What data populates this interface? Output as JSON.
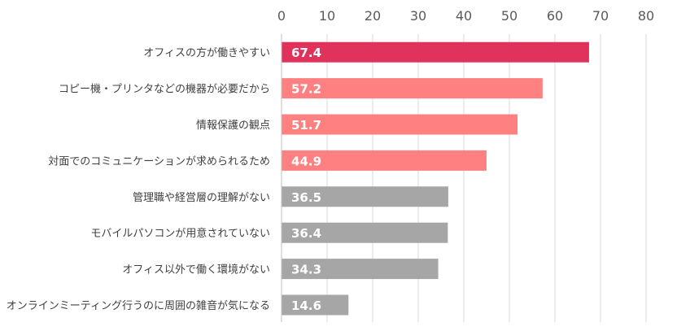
{
  "chart_data": {
    "type": "bar",
    "orientation": "horizontal",
    "categories": [
      "オフィスの方が働きやすい",
      "コピー機・プリンタなどの機器が必要だから",
      "情報保護の観点",
      "対面でのコミュニケーションが求められるため",
      "管理職や経営層の理解がない",
      "モバイルパソコンが用意されていない",
      "オフィス以外で働く環境がない",
      "オンラインミーティング行うのに周囲の雑音が気になる"
    ],
    "values": [
      67.4,
      57.2,
      51.7,
      44.9,
      36.5,
      36.4,
      34.3,
      14.6
    ],
    "value_labels": [
      "67.4",
      "57.2",
      "51.7",
      "44.9",
      "36.5",
      "36.4",
      "34.3",
      "14.6"
    ],
    "colors": [
      "#e0325a",
      "#ff8080",
      "#ff8080",
      "#ff8080",
      "#a6a6a6",
      "#a6a6a6",
      "#a6a6a6",
      "#a6a6a6"
    ],
    "xlim": [
      0,
      80
    ],
    "xticks": [
      "0",
      "10",
      "20",
      "30",
      "40",
      "50",
      "60",
      "70",
      "80"
    ],
    "x_axis_position": "top",
    "grid": true,
    "title": "",
    "xlabel": "",
    "ylabel": ""
  }
}
